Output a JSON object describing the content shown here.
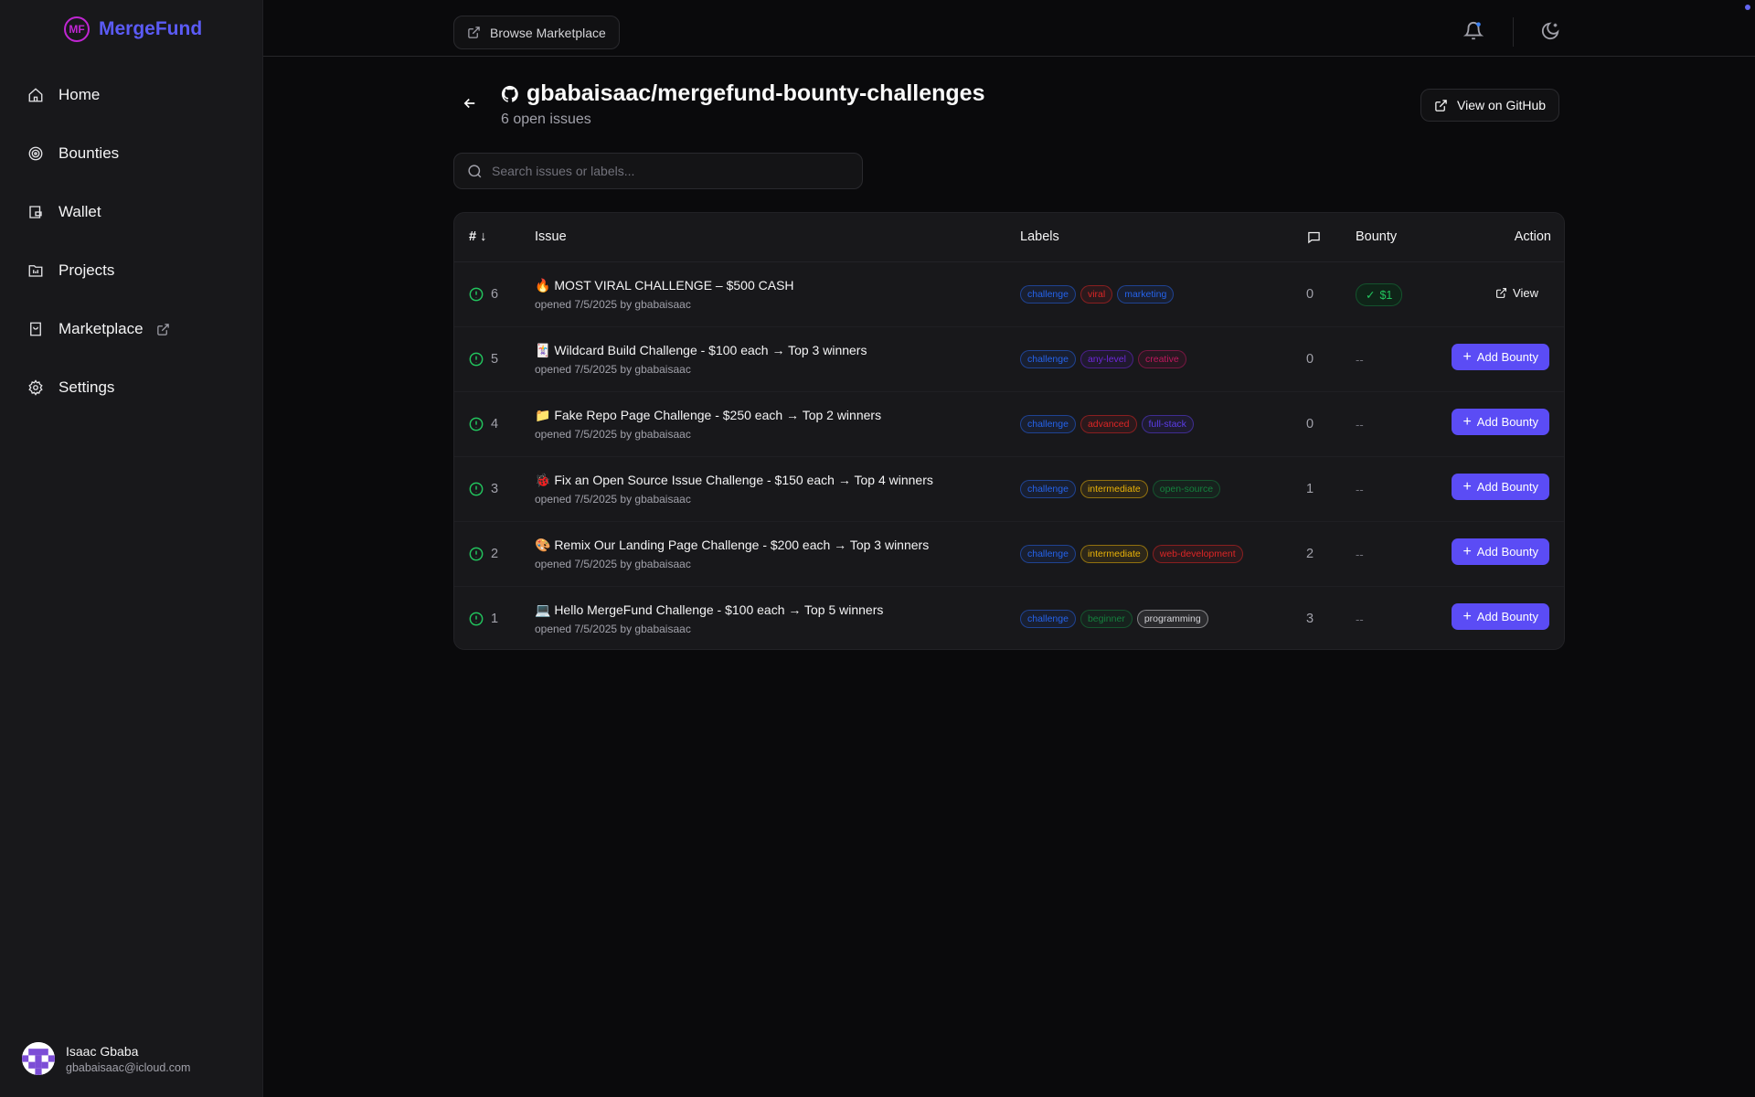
{
  "brand": {
    "name": "MergeFund",
    "logo_letters": "MF",
    "color": "#5b5bf6"
  },
  "sidebar": {
    "items": [
      {
        "label": "Home",
        "icon": "home-icon"
      },
      {
        "label": "Bounties",
        "icon": "target-icon"
      },
      {
        "label": "Wallet",
        "icon": "wallet-icon"
      },
      {
        "label": "Projects",
        "icon": "folder-icon"
      },
      {
        "label": "Marketplace",
        "icon": "shopping-bag-icon",
        "external": true
      },
      {
        "label": "Settings",
        "icon": "gear-icon"
      }
    ]
  },
  "user": {
    "name": "Isaac Gbaba",
    "email": "gbabaisaac@icloud.com"
  },
  "topbar": {
    "browse_label": "Browse Marketplace"
  },
  "repo": {
    "title": "gbabaisaac/mergefund-bounty-challenges",
    "subtitle": "6 open issues",
    "github_button": "View on GitHub"
  },
  "search": {
    "placeholder": "Search issues or labels..."
  },
  "table": {
    "headers": {
      "number": "#",
      "issue": "Issue",
      "labels": "Labels",
      "bounty": "Bounty",
      "action": "Action"
    },
    "rows": [
      {
        "number": "6",
        "title": "🔥 MOST VIRAL CHALLENGE – $500 CASH",
        "meta": "opened 7/5/2025 by gbabaisaac",
        "labels": [
          {
            "name": "challenge",
            "color": "#2563eb"
          },
          {
            "name": "viral",
            "color": "#dc2626"
          },
          {
            "name": "marketing",
            "color": "#2563eb"
          }
        ],
        "comments": "0",
        "bounty": "$1",
        "action": "View"
      },
      {
        "number": "5",
        "title": "🃏 Wildcard Build Challenge - $100 each → Top 3 winners",
        "meta": "opened 7/5/2025 by gbabaisaac",
        "labels": [
          {
            "name": "challenge",
            "color": "#2563eb"
          },
          {
            "name": "any-level",
            "color": "#6d28d9"
          },
          {
            "name": "creative",
            "color": "#be185d"
          }
        ],
        "comments": "0",
        "bounty": "--",
        "action": "Add Bounty"
      },
      {
        "number": "4",
        "title": "📁 Fake Repo Page Challenge - $250 each → Top 2 winners",
        "meta": "opened 7/5/2025 by gbabaisaac",
        "labels": [
          {
            "name": "challenge",
            "color": "#2563eb"
          },
          {
            "name": "advanced",
            "color": "#dc2626"
          },
          {
            "name": "full-stack",
            "color": "#5b3de8"
          }
        ],
        "comments": "0",
        "bounty": "--",
        "action": "Add Bounty"
      },
      {
        "number": "3",
        "title": "🐞 Fix an Open Source Issue Challenge - $150 each → Top 4 winners",
        "meta": "opened 7/5/2025 by gbabaisaac",
        "labels": [
          {
            "name": "challenge",
            "color": "#2563eb"
          },
          {
            "name": "intermediate",
            "color": "#eab308"
          },
          {
            "name": "open-source",
            "color": "#15803d"
          }
        ],
        "comments": "1",
        "bounty": "--",
        "action": "Add Bounty"
      },
      {
        "number": "2",
        "title": "🎨 Remix Our Landing Page Challenge - $200 each → Top 3 winners",
        "meta": "opened 7/5/2025 by gbabaisaac",
        "labels": [
          {
            "name": "challenge",
            "color": "#2563eb"
          },
          {
            "name": "intermediate",
            "color": "#eab308"
          },
          {
            "name": "web-development",
            "color": "#dc2626"
          }
        ],
        "comments": "2",
        "bounty": "--",
        "action": "Add Bounty"
      },
      {
        "number": "1",
        "title": "💻 Hello MergeFund Challenge - $100 each → Top 5 winners",
        "meta": "opened 7/5/2025 by gbabaisaac",
        "labels": [
          {
            "name": "challenge",
            "color": "#2563eb"
          },
          {
            "name": "beginner",
            "color": "#15803d"
          },
          {
            "name": "programming",
            "color": "#d4d4d8"
          }
        ],
        "comments": "3",
        "bounty": "--",
        "action": "Add Bounty"
      }
    ]
  },
  "colors": {
    "accent": "#5b4cf5",
    "open_status": "#22c55e"
  }
}
